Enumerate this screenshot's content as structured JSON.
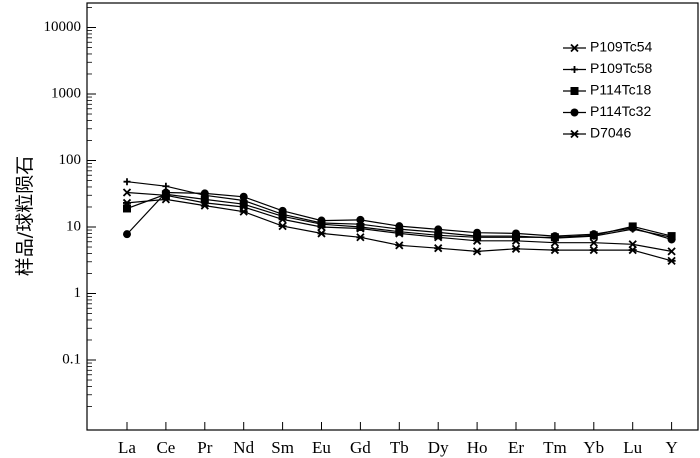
{
  "chart_data": {
    "type": "line",
    "title": "",
    "xlabel": "",
    "ylabel": "样品/球粒陨石",
    "yscale": "log",
    "ylim": [
      0.01,
      20000
    ],
    "yticks": [
      {
        "value": 0.1,
        "label": "0.1"
      },
      {
        "value": 1,
        "label": "1"
      },
      {
        "value": 10,
        "label": "10"
      },
      {
        "value": 100,
        "label": "100"
      },
      {
        "value": 1000,
        "label": "1000"
      },
      {
        "value": 10000,
        "label": "10000"
      }
    ],
    "categories": [
      "La",
      "Ce",
      "Pr",
      "Nd",
      "Sm",
      "Eu",
      "Gd",
      "Tb",
      "Dy",
      "Ho",
      "Er",
      "Tm",
      "Yb",
      "Lu",
      "Y"
    ],
    "legend_position": "top-right",
    "grid": false,
    "series": [
      {
        "name": "P109Tc54",
        "marker": "x",
        "values": [
          33,
          30,
          23,
          20,
          13,
          10,
          9.5,
          8,
          7,
          6.2,
          6.2,
          5.8,
          5.8,
          5.5,
          4.3
        ]
      },
      {
        "name": "P109Tc58",
        "marker": "plus",
        "values": [
          48,
          41,
          30,
          25,
          15.5,
          11.5,
          11,
          9.3,
          8.3,
          7.3,
          7.3,
          6.8,
          7.3,
          9.3,
          7
        ]
      },
      {
        "name": "P114Tc18",
        "marker": "square",
        "values": [
          19,
          31,
          26,
          22,
          14.5,
          11,
          10,
          8.5,
          7.5,
          7,
          7,
          7,
          7.5,
          10.2,
          7.3
        ]
      },
      {
        "name": "P114Tc32",
        "marker": "circle",
        "values": [
          7.8,
          33,
          32,
          28.5,
          17.5,
          12.5,
          12.8,
          10.3,
          9.2,
          8.2,
          8,
          7.3,
          7.8,
          9.7,
          6.5
        ]
      },
      {
        "name": "D7046",
        "marker": "asterisk",
        "values": [
          23,
          26,
          21,
          17,
          10.3,
          8,
          7,
          5.3,
          4.8,
          4.3,
          4.7,
          4.5,
          4.5,
          4.5,
          3.1
        ]
      }
    ]
  }
}
